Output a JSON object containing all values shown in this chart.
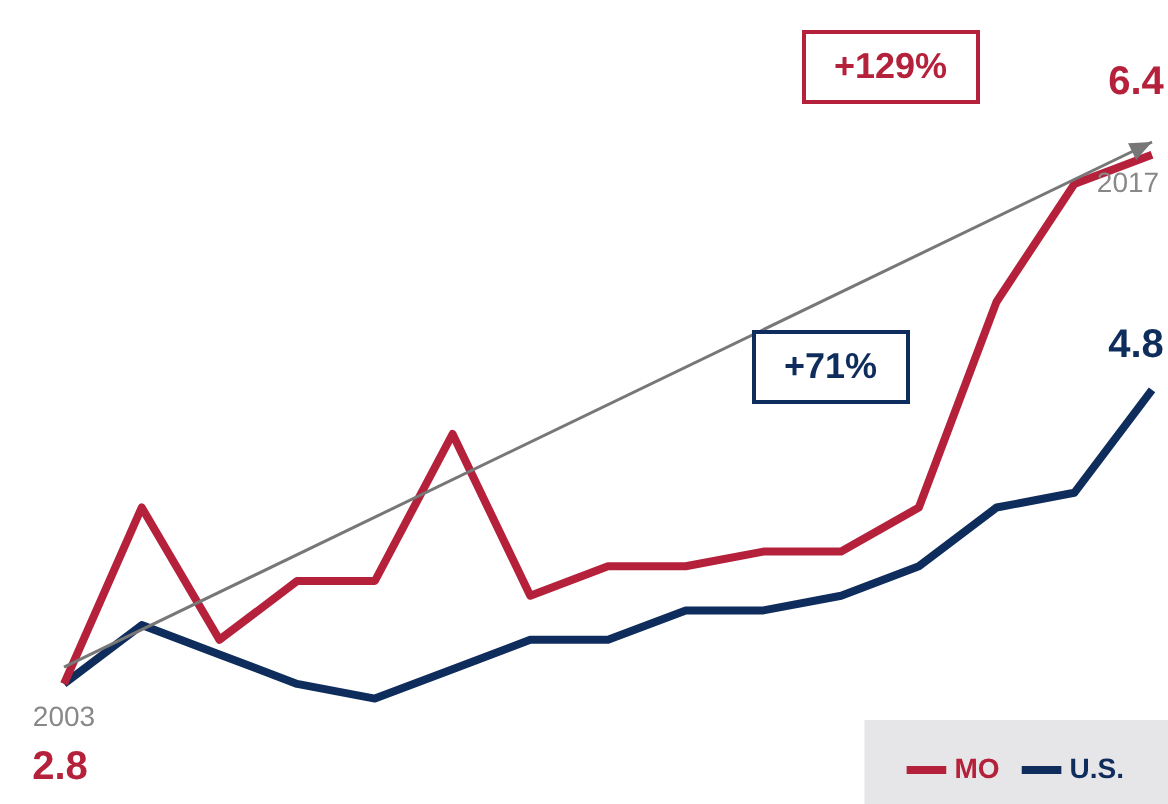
{
  "chart_data": {
    "type": "line",
    "categories": [
      "2003",
      null,
      null,
      null,
      null,
      null,
      null,
      null,
      null,
      null,
      null,
      null,
      null,
      null,
      "2017"
    ],
    "series": [
      {
        "name": "MO",
        "color": "#b5203a",
        "values": [
          2.8,
          4.0,
          3.1,
          3.5,
          3.5,
          4.5,
          3.4,
          3.6,
          3.6,
          3.7,
          3.7,
          4.0,
          5.4,
          6.2,
          6.4
        ],
        "value_labels": [
          "2.8",
          null,
          null,
          null,
          null,
          null,
          null,
          null,
          null,
          null,
          null,
          null,
          null,
          null,
          "6.4"
        ]
      },
      {
        "name": "U.S.",
        "color": "#0f2d5c",
        "values": [
          2.8,
          3.2,
          3.0,
          2.8,
          2.7,
          2.9,
          3.1,
          3.1,
          3.3,
          3.3,
          3.4,
          3.6,
          4.0,
          4.1,
          4.8
        ],
        "value_labels": [
          null,
          null,
          null,
          null,
          null,
          null,
          null,
          null,
          null,
          null,
          null,
          null,
          null,
          null,
          "4.8"
        ]
      }
    ],
    "annotations": [
      "+129%",
      "+71%"
    ],
    "legend": "bottom right",
    "marker": "none",
    "line_style": "solid"
  }
}
